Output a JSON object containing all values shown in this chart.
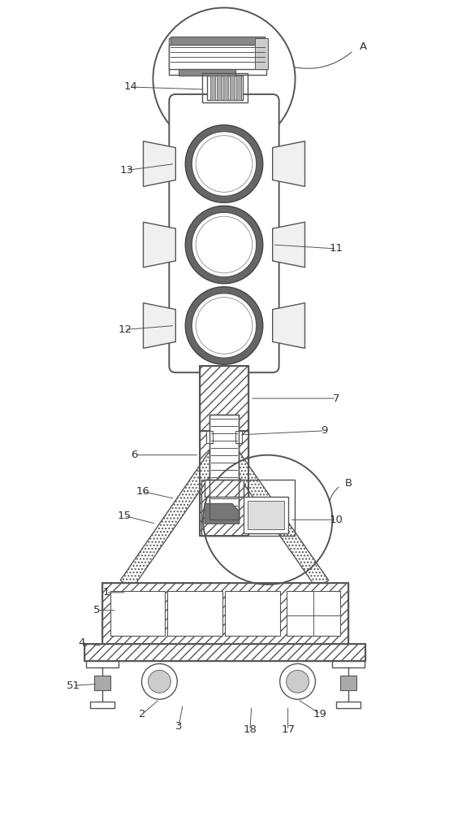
{
  "fig_width": 5.53,
  "fig_height": 10.0,
  "bg_color": "#ffffff",
  "line_color": "#555555",
  "label_color": "#333333",
  "label_fontsize": 9.5
}
